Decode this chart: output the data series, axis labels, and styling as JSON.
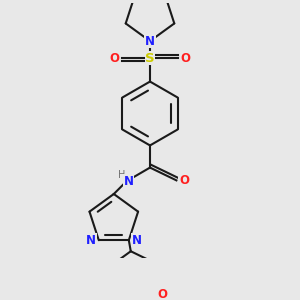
{
  "bg_color": "#e8e8e8",
  "bond_color": "#1a1a1a",
  "N_color": "#2020ff",
  "O_color": "#ff2020",
  "S_color": "#cccc00",
  "H_color": "#707070",
  "line_width": 1.5,
  "figsize": [
    3.0,
    3.0
  ],
  "dpi": 100,
  "xlim": [
    -1.8,
    1.8
  ],
  "ylim": [
    -3.2,
    2.8
  ]
}
